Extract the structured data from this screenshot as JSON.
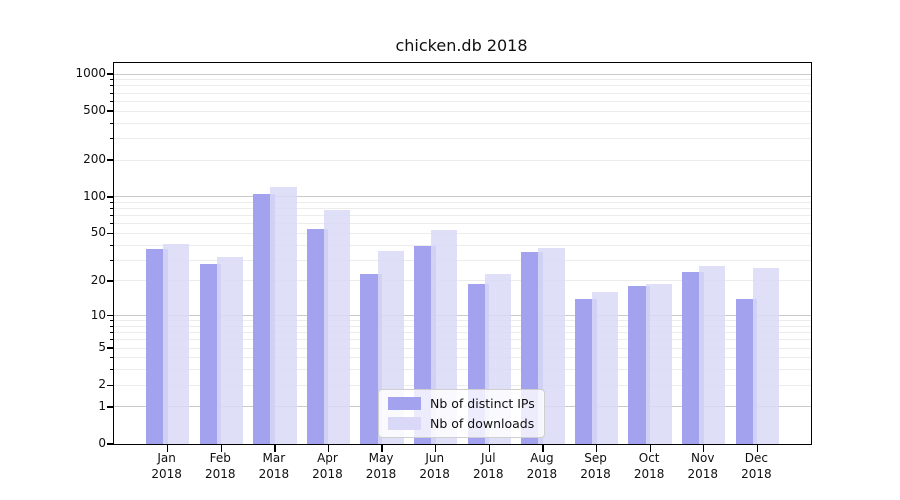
{
  "title": "chicken.db 2018",
  "chart_data": {
    "type": "bar",
    "title": "chicken.db 2018",
    "yscale": "log1p",
    "ylim": [
      0,
      1229
    ],
    "grid": true,
    "legend_position": "lower center",
    "yticks": [
      "1000",
      "500",
      "200",
      "100",
      "50",
      "20",
      "10",
      "5",
      "2",
      "1",
      "0"
    ],
    "categories": [
      "Jan 2018",
      "Feb 2018",
      "Mar 2018",
      "Apr 2018",
      "May 2018",
      "Jun 2018",
      "Jul 2018",
      "Aug 2018",
      "Sep 2018",
      "Oct 2018",
      "Nov 2018",
      "Dec 2018"
    ],
    "series": [
      {
        "name": "Nb of distinct IPs",
        "color": "#a2a2ef",
        "values": [
          37,
          28,
          106,
          54,
          23,
          39,
          19,
          35,
          14,
          18,
          24,
          14
        ]
      },
      {
        "name": "Nb of downloads",
        "color": "#d9d9f7",
        "values": [
          41,
          32,
          120,
          78,
          36,
          53,
          23,
          38,
          16,
          19,
          27,
          26
        ]
      }
    ]
  }
}
